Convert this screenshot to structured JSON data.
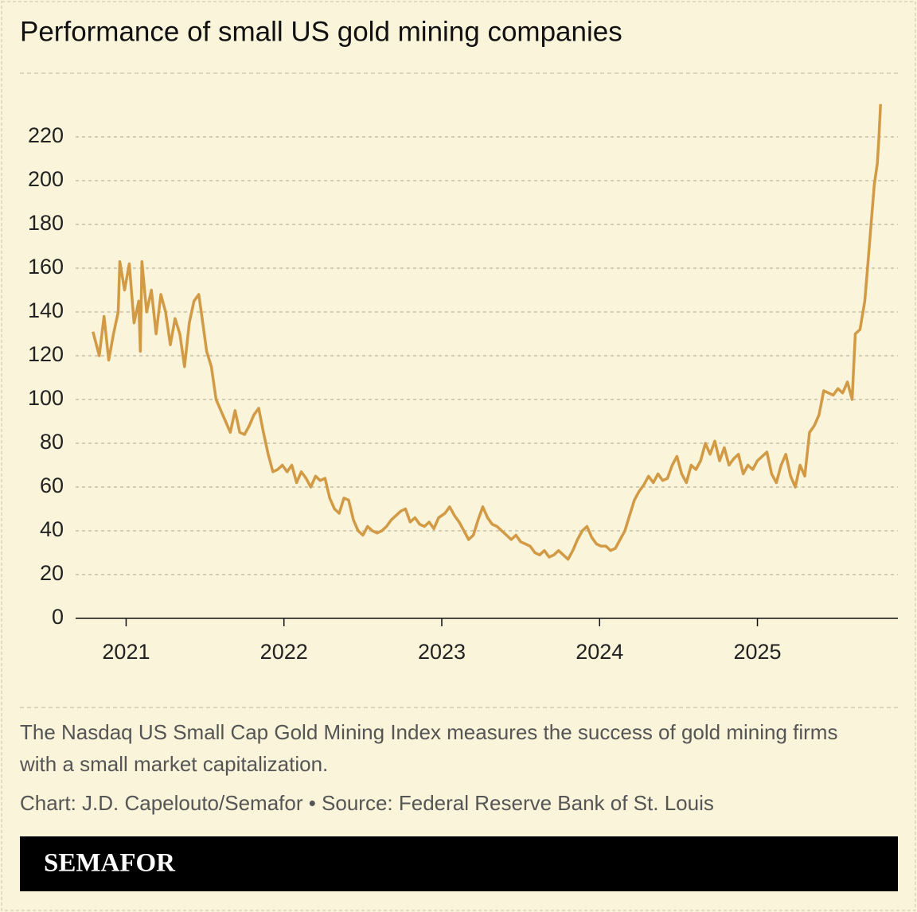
{
  "chart_data": {
    "type": "line",
    "title": "Performance of small US gold mining companies",
    "note": [
      "The Nasdaq US Small Cap Gold Mining Index measures the success of gold mining firms",
      "with a small market capitalization."
    ],
    "source": "Chart: J.D. Capelouto/Semafor • Source: Federal Reserve Bank of St. Louis",
    "brand": "SEMAFOR",
    "color": "#d29a44",
    "xlim": [
      2020.68,
      2025.89
    ],
    "xticks": [
      2021,
      2022,
      2023,
      2024,
      2025
    ],
    "ylim": [
      0,
      240
    ],
    "yticks": [
      0,
      20,
      40,
      60,
      80,
      100,
      120,
      140,
      160,
      180,
      200,
      220
    ],
    "grid": true,
    "x": [
      2020.79,
      2020.83,
      2020.86,
      2020.89,
      2020.92,
      2020.95,
      2020.96,
      2020.99,
      2021.02,
      2021.05,
      2021.08,
      2021.09,
      2021.1,
      2021.13,
      2021.16,
      2021.19,
      2021.22,
      2021.25,
      2021.28,
      2021.31,
      2021.34,
      2021.37,
      2021.4,
      2021.43,
      2021.46,
      2021.48,
      2021.51,
      2021.54,
      2021.57,
      2021.6,
      2021.63,
      2021.66,
      2021.69,
      2021.72,
      2021.75,
      2021.78,
      2021.81,
      2021.84,
      2021.87,
      2021.9,
      2021.93,
      2021.96,
      2021.99,
      2022.02,
      2022.05,
      2022.08,
      2022.11,
      2022.14,
      2022.17,
      2022.2,
      2022.23,
      2022.26,
      2022.29,
      2022.32,
      2022.35,
      2022.38,
      2022.41,
      2022.44,
      2022.47,
      2022.5,
      2022.53,
      2022.56,
      2022.59,
      2022.62,
      2022.65,
      2022.68,
      2022.71,
      2022.74,
      2022.77,
      2022.8,
      2022.83,
      2022.86,
      2022.89,
      2022.92,
      2022.95,
      2022.98,
      2023.02,
      2023.05,
      2023.08,
      2023.11,
      2023.14,
      2023.17,
      2023.2,
      2023.23,
      2023.26,
      2023.29,
      2023.32,
      2023.35,
      2023.38,
      2023.41,
      2023.44,
      2023.47,
      2023.5,
      2023.53,
      2023.56,
      2023.59,
      2023.62,
      2023.65,
      2023.68,
      2023.71,
      2023.74,
      2023.77,
      2023.8,
      2023.83,
      2023.86,
      2023.89,
      2023.92,
      2023.95,
      2023.98,
      2024.01,
      2024.04,
      2024.07,
      2024.1,
      2024.13,
      2024.16,
      2024.19,
      2024.22,
      2024.25,
      2024.28,
      2024.31,
      2024.34,
      2024.37,
      2024.4,
      2024.43,
      2024.46,
      2024.49,
      2024.52,
      2024.55,
      2024.58,
      2024.61,
      2024.64,
      2024.67,
      2024.7,
      2024.73,
      2024.76,
      2024.79,
      2024.82,
      2024.85,
      2024.88,
      2024.91,
      2024.94,
      2024.97,
      2025.0,
      2025.03,
      2025.06,
      2025.09,
      2025.12,
      2025.15,
      2025.18,
      2025.21,
      2025.24,
      2025.27,
      2025.3,
      2025.33,
      2025.36,
      2025.39,
      2025.42,
      2025.45,
      2025.48,
      2025.51,
      2025.54,
      2025.57,
      2025.6,
      2025.62,
      2025.65,
      2025.68,
      2025.7,
      2025.72,
      2025.74,
      2025.76,
      2025.77,
      2025.78
    ],
    "values": [
      131,
      120,
      138,
      118,
      130,
      140,
      163,
      150,
      162,
      135,
      145,
      122,
      163,
      140,
      150,
      130,
      148,
      140,
      125,
      137,
      130,
      115,
      135,
      145,
      148,
      138,
      122,
      115,
      100,
      95,
      90,
      85,
      95,
      85,
      84,
      88,
      93,
      96,
      85,
      75,
      67,
      68,
      70,
      67,
      70,
      62,
      67,
      64,
      60,
      65,
      63,
      64,
      55,
      50,
      48,
      55,
      54,
      45,
      40,
      38,
      42,
      40,
      39,
      40,
      42,
      45,
      47,
      49,
      50,
      44,
      46,
      43,
      42,
      44,
      41,
      46,
      48,
      51,
      47,
      44,
      40,
      36,
      38,
      45,
      51,
      46,
      43,
      42,
      40,
      38,
      36,
      38,
      35,
      34,
      33,
      30,
      29,
      31,
      28,
      29,
      31,
      29,
      27,
      31,
      36,
      40,
      42,
      37,
      34,
      33,
      33,
      31,
      32,
      36,
      40,
      47,
      54,
      58,
      61,
      65,
      62,
      66,
      63,
      64,
      70,
      74,
      66,
      62,
      70,
      68,
      72,
      80,
      75,
      81,
      72,
      78,
      70,
      73,
      75,
      66,
      70,
      68,
      72,
      74,
      76,
      66,
      62,
      70,
      75,
      65,
      60,
      70,
      65,
      85,
      88,
      93,
      104,
      103,
      102,
      105,
      103,
      108,
      100,
      130,
      132,
      145,
      162,
      180,
      198,
      208,
      220,
      235
    ]
  }
}
